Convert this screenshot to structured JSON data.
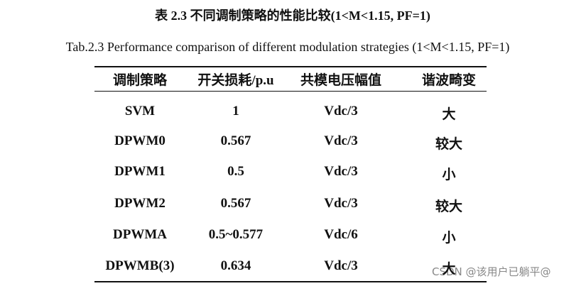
{
  "caption": {
    "zh": "表 2.3  不同调制策略的性能比较(1<M<1.15, PF=1)",
    "en": "Tab.2.3 Performance comparison of different modulation strategies (1<M<1.15, PF=1)"
  },
  "table": {
    "header": [
      "调制策略",
      "开关损耗/p.u",
      "共模电压幅值",
      "谐波畸变"
    ],
    "rows": [
      [
        "SVM",
        "1",
        "Vdc/3",
        "大"
      ],
      [
        "DPWM0",
        "0.567",
        "Vdc/3",
        "较大"
      ],
      [
        "DPWM1",
        "0.5",
        "Vdc/3",
        "小"
      ],
      [
        "DPWM2",
        "0.567",
        "Vdc/3",
        "较大"
      ],
      [
        "DPWMA",
        "0.5~0.577",
        "Vdc/6",
        "小"
      ],
      [
        "DPWMB(3)",
        "0.634",
        "Vdc/3",
        "大"
      ]
    ]
  },
  "watermark": "CSDN @该用户已躺平@"
}
